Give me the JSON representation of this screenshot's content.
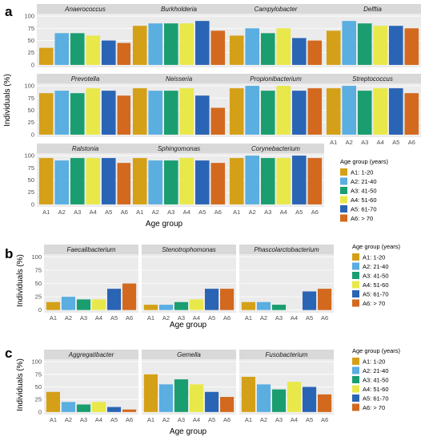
{
  "colors": [
    "#d4a017",
    "#5aaee0",
    "#1a9e6f",
    "#e8e84a",
    "#2a64b4",
    "#d2691e"
  ],
  "chart_data": [
    {
      "type": "bar",
      "label": "a",
      "categories": [
        "A1",
        "A2",
        "A3",
        "A4",
        "A5",
        "A6"
      ],
      "ylabel": "Individuals (%)",
      "xlabel": "Age group",
      "ylim": [
        0,
        100
      ],
      "yticks": [
        0,
        25,
        50,
        75,
        100
      ],
      "grid": true,
      "legend": {
        "title": "Age group (years)",
        "position": "right",
        "entries": [
          "A1:  1-20",
          "A2:  21-40",
          "A3:  41-50",
          "A4:  51-60",
          "A5:  61-70",
          "A6:  > 70"
        ]
      },
      "facets": [
        {
          "name": "Anaerococcus",
          "values": [
            35,
            65,
            65,
            60,
            50,
            45
          ]
        },
        {
          "name": "Burkholderia",
          "values": [
            80,
            85,
            85,
            85,
            90,
            70
          ]
        },
        {
          "name": "Campylobacter",
          "values": [
            60,
            75,
            65,
            75,
            55,
            50
          ]
        },
        {
          "name": "Delftia",
          "values": [
            70,
            90,
            85,
            80,
            80,
            75
          ]
        },
        {
          "name": "Prevotella",
          "values": [
            85,
            90,
            85,
            95,
            90,
            80
          ]
        },
        {
          "name": "Neisseria",
          "values": [
            95,
            90,
            90,
            95,
            80,
            55
          ]
        },
        {
          "name": "Propionibacterium",
          "values": [
            95,
            100,
            90,
            100,
            90,
            95
          ]
        },
        {
          "name": "Streptococcus",
          "values": [
            95,
            100,
            90,
            95,
            95,
            85
          ]
        },
        {
          "name": "Ralstonia",
          "values": [
            95,
            90,
            95,
            95,
            95,
            85
          ]
        },
        {
          "name": "Sphingomonas",
          "values": [
            95,
            90,
            90,
            95,
            90,
            85
          ]
        },
        {
          "name": "Corynebacterium",
          "values": [
            95,
            100,
            95,
            95,
            100,
            95
          ]
        }
      ]
    },
    {
      "type": "bar",
      "label": "b",
      "categories": [
        "A1",
        "A2",
        "A3",
        "A4",
        "A5",
        "A6"
      ],
      "ylabel": "Individuals (%)",
      "xlabel": "Age group",
      "ylim": [
        0,
        100
      ],
      "yticks": [
        0,
        25,
        50,
        75,
        100
      ],
      "grid": true,
      "legend": {
        "title": "Age group (years)",
        "position": "right",
        "entries": [
          "A1:  1-20",
          "A2:  21-40",
          "A3:  41-50",
          "A4:  51-60",
          "A5:  61-70",
          "A6:  > 70"
        ]
      },
      "facets": [
        {
          "name": "Faecalibacterium",
          "values": [
            15,
            25,
            20,
            20,
            40,
            50
          ]
        },
        {
          "name": "Stenotrophomonas",
          "values": [
            10,
            10,
            15,
            20,
            40,
            40
          ]
        },
        {
          "name": "Phascolarctobacterium",
          "values": [
            15,
            15,
            10,
            0,
            35,
            40
          ]
        }
      ]
    },
    {
      "type": "bar",
      "label": "c",
      "categories": [
        "A1",
        "A2",
        "A3",
        "A4",
        "A5",
        "A6"
      ],
      "ylabel": "Individuals (%)",
      "xlabel": "Age group",
      "ylim": [
        0,
        100
      ],
      "yticks": [
        0,
        25,
        50,
        75,
        100
      ],
      "grid": true,
      "legend": {
        "title": "Age group (years)",
        "position": "right",
        "entries": [
          "A1:  1-20",
          "A2:  21-40",
          "A3:  41-50",
          "A4:  51-60",
          "A5:  61-70",
          "A6:  > 70"
        ]
      },
      "facets": [
        {
          "name": "Aggregatibacter",
          "values": [
            40,
            20,
            15,
            20,
            10,
            5
          ]
        },
        {
          "name": "Gemella",
          "values": [
            75,
            55,
            65,
            55,
            40,
            30
          ]
        },
        {
          "name": "Fusobacterium",
          "values": [
            70,
            55,
            45,
            60,
            50,
            35
          ]
        }
      ]
    }
  ]
}
